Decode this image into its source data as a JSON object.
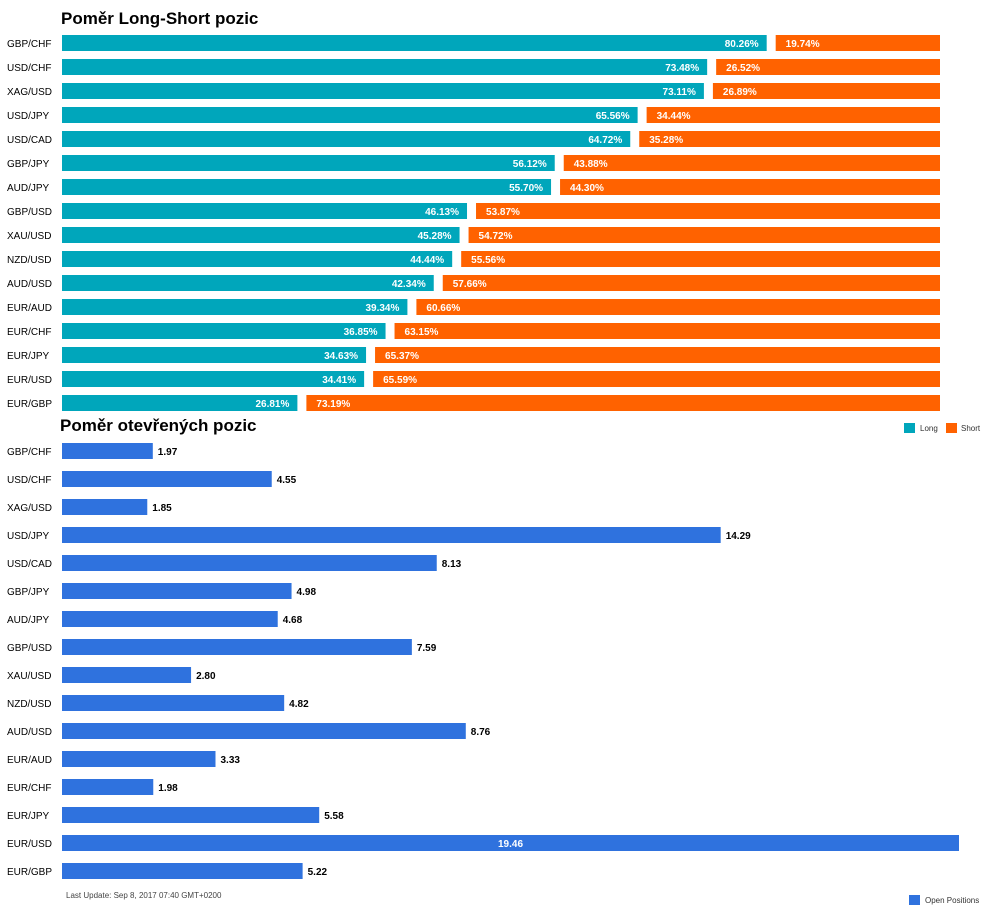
{
  "colors": {
    "long": "#00a6bb",
    "short": "#ff6200",
    "open": "#2f72de"
  },
  "chart_data": [
    {
      "type": "bar",
      "title": "Poměr Long-Short pozic",
      "categories": [
        "GBP/CHF",
        "USD/CHF",
        "XAG/USD",
        "USD/JPY",
        "USD/CAD",
        "GBP/JPY",
        "AUD/JPY",
        "GBP/USD",
        "XAU/USD",
        "NZD/USD",
        "AUD/USD",
        "EUR/AUD",
        "EUR/CHF",
        "EUR/JPY",
        "EUR/USD",
        "EUR/GBP"
      ],
      "series": [
        {
          "name": "Long",
          "values": [
            80.26,
            73.48,
            73.11,
            65.56,
            64.72,
            56.12,
            55.7,
            46.13,
            45.28,
            44.44,
            42.34,
            39.34,
            36.85,
            34.63,
            34.41,
            26.81
          ],
          "labels": [
            "80.26%",
            "73.48%",
            "73.11%",
            "65.56%",
            "64.72%",
            "56.12%",
            "55.70%",
            "46.13%",
            "45.28%",
            "44.44%",
            "42.34%",
            "39.34%",
            "36.85%",
            "34.63%",
            "34.41%",
            "26.81%"
          ]
        },
        {
          "name": "Short",
          "values": [
            19.74,
            26.52,
            26.89,
            34.44,
            35.28,
            43.88,
            44.3,
            53.87,
            54.72,
            55.56,
            57.66,
            60.66,
            63.15,
            65.37,
            65.59,
            73.19
          ],
          "labels": [
            "19.74%",
            "26.52%",
            "26.89%",
            "34.44%",
            "35.28%",
            "43.88%",
            "44.30%",
            "53.87%",
            "54.72%",
            "55.56%",
            "57.66%",
            "60.66%",
            "63.15%",
            "65.37%",
            "65.59%",
            "73.19%"
          ]
        }
      ],
      "stacked": true,
      "orientation": "horizontal",
      "legend_position": "right",
      "xlim": [
        0,
        100
      ]
    },
    {
      "type": "bar",
      "title": "Poměr otevřených pozic",
      "categories": [
        "GBP/CHF",
        "USD/CHF",
        "XAG/USD",
        "USD/JPY",
        "USD/CAD",
        "GBP/JPY",
        "AUD/JPY",
        "GBP/USD",
        "XAU/USD",
        "NZD/USD",
        "AUD/USD",
        "EUR/AUD",
        "EUR/CHF",
        "EUR/JPY",
        "EUR/USD",
        "EUR/GBP"
      ],
      "series": [
        {
          "name": "Open Positions",
          "values": [
            1.97,
            4.55,
            1.85,
            14.29,
            8.13,
            4.98,
            4.68,
            7.59,
            2.8,
            4.82,
            8.76,
            3.33,
            1.98,
            5.58,
            19.46,
            5.22
          ],
          "labels": [
            "1.97",
            "4.55",
            "1.85",
            "14.29",
            "8.13",
            "4.98",
            "4.68",
            "7.59",
            "2.80",
            "4.82",
            "8.76",
            "3.33",
            "1.98",
            "5.58",
            "19.46",
            "5.22"
          ]
        }
      ],
      "orientation": "horizontal",
      "legend_position": "bottom-right",
      "xlim": [
        0,
        19.46
      ]
    }
  ],
  "footer": "Last Update: Sep 8, 2017 07:40 GMT+0200"
}
